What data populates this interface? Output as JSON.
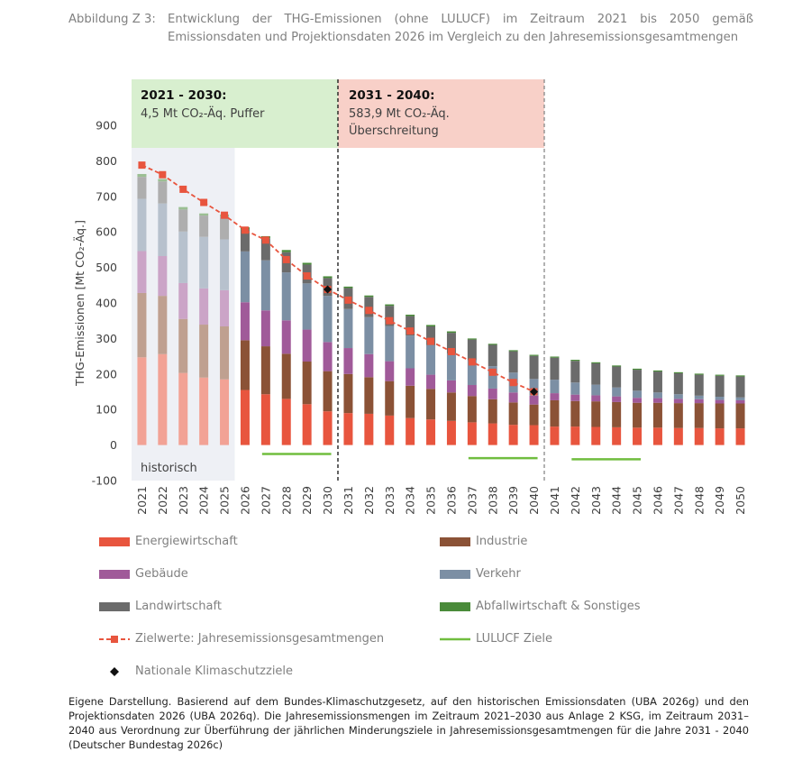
{
  "figure": {
    "label": "Abbildung Z 3:",
    "title": "Entwicklung der THG-Emissionen (ohne LULUCF) im Zeitraum 2021 bis 2050 gemäß Emissionsdaten und Projektionsdaten 2026 im Vergleich zu den Jahresemissionsgesamtmengen"
  },
  "annotations": {
    "period1_heading": "2021 - 2030:",
    "period1_text": "4,5 Mt CO₂-Äq. Puffer",
    "period2_heading": "2031 - 2040:",
    "period2_text_line1": "583,9 Mt CO₂-Äq.",
    "period2_text_line2": "Überschreitung",
    "historic_label": "historisch"
  },
  "footnote": "Eigene Darstellung. Basierend auf dem Bundes-Klimaschutzgesetz, auf den historischen Emissionsdaten (UBA 2026g) und den Projektionsdaten 2026 (UBA 2026q). Die Jahresemissionsmengen im Zeitraum 2021–2030 aus Anlage 2 KSG, im Zeitraum 2031–2040 aus Verordnung zur Überführung der jährlichen Minderungsziele in Jahresemissionsgesamtmengen für die Jahre 2031 - 2040 (Deutscher Bundestag 2026c)",
  "chart_data": {
    "type": "bar",
    "stacked": true,
    "ylabel": "THG-Emissionen [Mt CO₂-Äq.]",
    "ylim": [
      -100,
      900
    ],
    "yticks": [
      -100,
      0,
      100,
      200,
      300,
      400,
      500,
      600,
      700,
      800,
      900
    ],
    "categories": [
      "2021",
      "2022",
      "2023",
      "2024",
      "2025",
      "2026",
      "2027",
      "2028",
      "2029",
      "2030",
      "2031",
      "2032",
      "2033",
      "2034",
      "2035",
      "2036",
      "2037",
      "2038",
      "2039",
      "2040",
      "2041",
      "2042",
      "2043",
      "2044",
      "2045",
      "2046",
      "2047",
      "2048",
      "2049",
      "2050"
    ],
    "historic_years": [
      "2021",
      "2022",
      "2023",
      "2024",
      "2025"
    ],
    "series": [
      {
        "name": "Energiewirtschaft",
        "color": "#e8553e",
        "values": [
          247,
          256,
          203,
          190,
          185,
          155,
          143,
          130,
          115,
          95,
          90,
          88,
          83,
          76,
          72,
          68,
          64,
          61,
          57,
          56,
          52,
          52,
          51,
          50,
          49,
          49,
          48,
          48,
          47,
          47
        ]
      },
      {
        "name": "Industrie",
        "color": "#8b5236",
        "values": [
          181,
          164,
          152,
          149,
          149,
          140,
          135,
          127,
          120,
          113,
          110,
          103,
          97,
          91,
          86,
          80,
          74,
          68,
          63,
          58,
          74,
          72,
          72,
          71,
          70,
          70,
          70,
          70,
          70,
          70
        ]
      },
      {
        "name": "Gebäude",
        "color": "#a05a99",
        "values": [
          118,
          112,
          101,
          102,
          102,
          107,
          101,
          94,
          90,
          82,
          73,
          65,
          56,
          49,
          40,
          34,
          31,
          30,
          28,
          25,
          20,
          18,
          17,
          16,
          14,
          13,
          12,
          11,
          10,
          9
        ]
      },
      {
        "name": "Verkehr",
        "color": "#7c8fa4",
        "values": [
          147,
          148,
          145,
          145,
          143,
          143,
          141,
          135,
          130,
          130,
          110,
          104,
          99,
          92,
          83,
          76,
          70,
          63,
          56,
          47,
          38,
          34,
          30,
          25,
          20,
          16,
          13,
          10,
          9,
          8
        ]
      },
      {
        "name": "Landwirtschaft",
        "color": "#6b6b6b",
        "values": [
          62,
          62,
          62,
          60,
          64,
          62,
          62,
          57,
          53,
          50,
          59,
          57,
          57,
          55,
          53,
          58,
          58,
          60,
          60,
          65,
          62,
          61,
          60,
          59,
          59,
          59,
          59,
          59,
          59,
          59
        ]
      },
      {
        "name": "Abfallwirtschaft & Sonstiges",
        "color": "#4a8b3a",
        "values": [
          8,
          7,
          7,
          6,
          6,
          6,
          6,
          6,
          5,
          5,
          4,
          4,
          4,
          4,
          4,
          4,
          3,
          3,
          3,
          3,
          3,
          3,
          3,
          3,
          3,
          3,
          3,
          3,
          3,
          3
        ]
      }
    ],
    "target_line": {
      "name": "Zielwerte: Jahresemissionsgesamtmengen",
      "color": "#e8553e",
      "years": [
        "2021",
        "2022",
        "2023",
        "2024",
        "2025",
        "2026",
        "2027",
        "2028",
        "2029",
        "2030",
        "2031",
        "2032",
        "2033",
        "2034",
        "2035",
        "2036",
        "2037",
        "2038",
        "2039",
        "2040"
      ],
      "values": [
        788,
        761,
        720,
        683,
        647,
        605,
        577,
        522,
        476,
        438,
        408,
        379,
        350,
        321,
        292,
        263,
        234,
        205,
        176,
        150
      ]
    },
    "national_targets": {
      "name": "Nationale Klimaschutzziele",
      "points": [
        {
          "x": "2030",
          "y": 438
        },
        {
          "x": "2040",
          "y": 150
        }
      ]
    },
    "lulucf": {
      "name": "LULUCF Ziele",
      "color": "#70bd3f",
      "segments": [
        {
          "x1": "2027",
          "x2": "2030",
          "y": -25
        },
        {
          "x1": "2037",
          "x2": "2040",
          "y": -37
        },
        {
          "x1": "2042",
          "x2": "2045",
          "y": -40
        }
      ]
    },
    "periods": [
      {
        "from": "2021",
        "to": "2030",
        "color": "#d8efcf"
      },
      {
        "from": "2031",
        "to": "2040",
        "color": "#f8d0c8"
      }
    ],
    "legend_position": "bottom",
    "grid": false
  },
  "legend": [
    {
      "key": "energie",
      "label": "Energiewirtschaft"
    },
    {
      "key": "industrie",
      "label": "Industrie"
    },
    {
      "key": "gebaeude",
      "label": "Gebäude"
    },
    {
      "key": "verkehr",
      "label": "Verkehr"
    },
    {
      "key": "landwirtschaft",
      "label": "Landwirtschaft"
    },
    {
      "key": "abfall",
      "label": "Abfallwirtschaft & Sonstiges"
    },
    {
      "key": "zielwerte",
      "label": "Zielwerte: Jahresemissionsgesamtmengen"
    },
    {
      "key": "lulucf",
      "label": "LULUCF Ziele"
    },
    {
      "key": "national",
      "label": "Nationale Klimaschutzziele"
    }
  ]
}
